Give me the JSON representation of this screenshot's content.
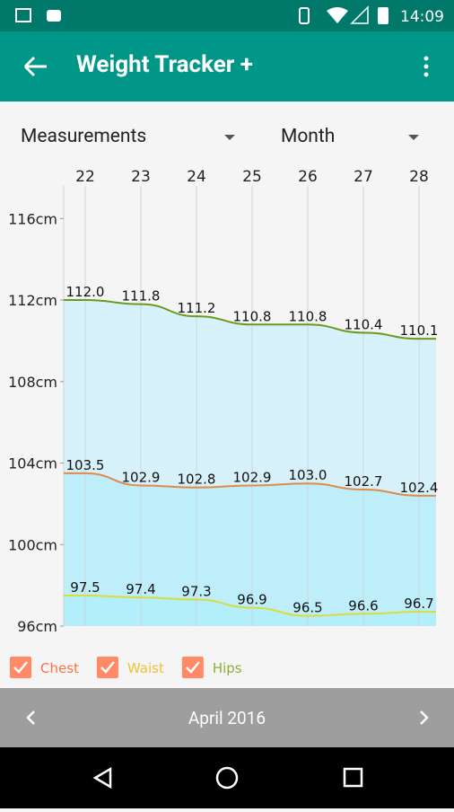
{
  "status_bar": {
    "time": "14:09"
  },
  "app_bar": {
    "title": "Weight Tracker +"
  },
  "filters": {
    "measurement": "Measurements",
    "period": "Month"
  },
  "chart_data": {
    "type": "line",
    "categories": [
      "22",
      "23",
      "24",
      "25",
      "26",
      "27",
      "28"
    ],
    "ylim": [
      96,
      117.6
    ],
    "yticks": [
      {
        "value": 96,
        "label": "96cm"
      },
      {
        "value": 100,
        "label": "100cm"
      },
      {
        "value": 104,
        "label": "104cm"
      },
      {
        "value": 108,
        "label": "108cm"
      },
      {
        "value": 112,
        "label": "112cm"
      },
      {
        "value": 116,
        "label": "116cm"
      }
    ],
    "series": [
      {
        "name": "Chest",
        "color": "#e08a4c",
        "legend_color": "#ff7043",
        "values": [
          103.5,
          102.9,
          102.8,
          102.9,
          103.0,
          102.7,
          102.4
        ],
        "value_labels": [
          "103.5",
          "102.9",
          "102.8",
          "102.9",
          "103.0",
          "102.7",
          "102.4"
        ]
      },
      {
        "name": "Waist",
        "color": "#d9dc3c",
        "legend_color": "#f2c12e",
        "values": [
          97.5,
          97.4,
          97.3,
          96.9,
          96.5,
          96.6,
          96.7
        ],
        "value_labels": [
          "97.5",
          "97.4",
          "97.3",
          "96.9",
          "96.5",
          "96.6",
          "96.7"
        ]
      },
      {
        "name": "Hips",
        "color": "#6a9a1e",
        "legend_color": "#8cb033",
        "values": [
          112.0,
          111.8,
          111.2,
          110.8,
          110.8,
          110.4,
          110.1
        ],
        "value_labels": [
          "112.0",
          "111.8",
          "111.2",
          "110.8",
          "110.8",
          "110.4",
          "110.1"
        ]
      }
    ]
  },
  "footer": {
    "month": "April 2016"
  }
}
